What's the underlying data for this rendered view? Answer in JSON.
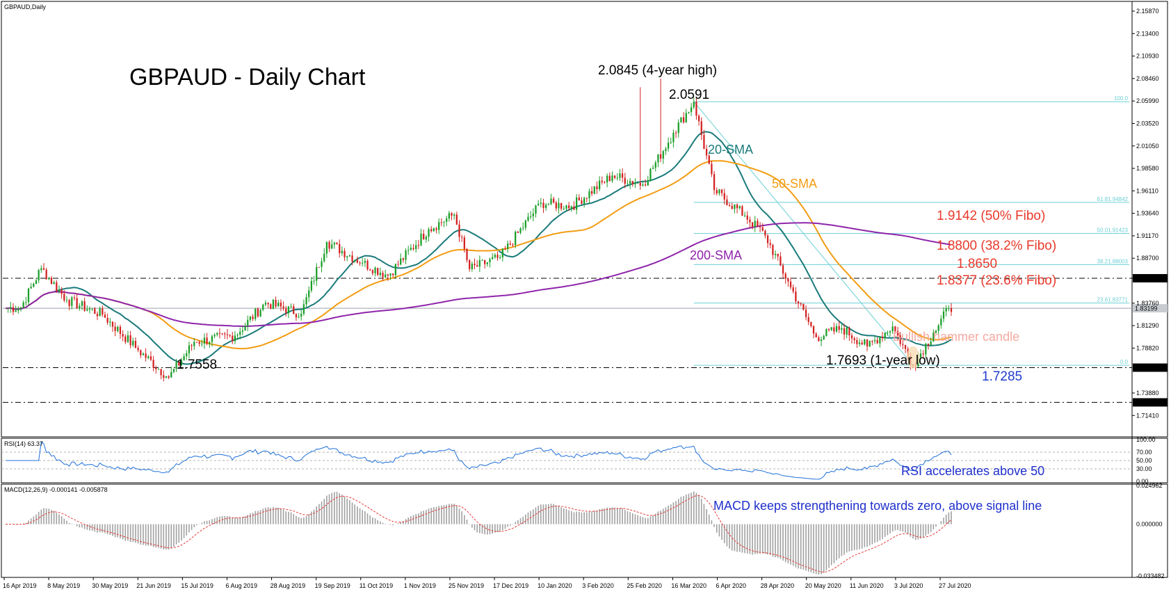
{
  "chart_data": [
    {
      "panel": "price",
      "type": "candlestick",
      "symbol_label": "GBPAUD,Daily",
      "title": "GBPAUD - Daily Chart",
      "ylim": [
        1.6967,
        2.1587
      ],
      "y_ticks": [
        "2.15870",
        "2.13400",
        "2.10930",
        "2.08460",
        "2.05990",
        "2.03520",
        "2.01050",
        "1.98580",
        "1.96110",
        "1.93640",
        "1.91170",
        "1.88700",
        "1.86500",
        "1.83760",
        "1.83199",
        "1.81290",
        "1.78820",
        "1.76670",
        "1.73880",
        "1.72850",
        "1.71410"
      ],
      "x_labels": [
        "16 Apr 2019",
        "8 May 2019",
        "30 May 2019",
        "21 Jun 2019",
        "15 Jul 2019",
        "6 Aug 2019",
        "28 Aug 2019",
        "19 Sep 2019",
        "11 Oct 2019",
        "1 Nov 2019",
        "25 Nov 2019",
        "17 Dec 2019",
        "10 Jan 2020",
        "3 Feb 2020",
        "25 Feb 2020",
        "16 Mar 2020",
        "6 Apr 2020",
        "28 Apr 2020",
        "20 May 2020",
        "11 Jun 2020",
        "3 Jul 2020",
        "27 Jul 2020"
      ],
      "key_points": [
        {
          "index": 0,
          "close": 1.832
        },
        {
          "index": 6,
          "close": 1.833
        },
        {
          "index": 14,
          "close": 1.876
        },
        {
          "index": 24,
          "close": 1.841
        },
        {
          "index": 38,
          "close": 1.825
        },
        {
          "index": 52,
          "close": 1.786
        },
        {
          "index": 64,
          "close": 1.7558
        },
        {
          "index": 74,
          "close": 1.795
        },
        {
          "index": 90,
          "close": 1.802
        },
        {
          "index": 102,
          "close": 1.838
        },
        {
          "index": 116,
          "close": 1.826
        },
        {
          "index": 126,
          "close": 1.905
        },
        {
          "index": 140,
          "close": 1.882
        },
        {
          "index": 150,
          "close": 1.868
        },
        {
          "index": 166,
          "close": 1.919
        },
        {
          "index": 176,
          "close": 1.935
        },
        {
          "index": 182,
          "close": 1.875
        },
        {
          "index": 194,
          "close": 1.888
        },
        {
          "index": 210,
          "close": 1.948
        },
        {
          "index": 222,
          "close": 1.944
        },
        {
          "index": 238,
          "close": 1.978
        },
        {
          "index": 250,
          "close": 1.968
        },
        {
          "index": 262,
          "close": 2.025
        },
        {
          "index": 270,
          "close": 2.0591
        },
        {
          "index": 278,
          "close": 1.962
        },
        {
          "index": 290,
          "close": 1.934
        },
        {
          "index": 298,
          "close": 1.912
        },
        {
          "index": 308,
          "close": 1.855
        },
        {
          "index": 318,
          "close": 1.8
        },
        {
          "index": 328,
          "close": 1.81
        },
        {
          "index": 338,
          "close": 1.79
        },
        {
          "index": 348,
          "close": 1.812
        },
        {
          "index": 356,
          "close": 1.7693
        },
        {
          "index": 364,
          "close": 1.805
        },
        {
          "index": 370,
          "close": 1.832
        }
      ],
      "spikes": [
        {
          "index": 249,
          "high": 2.075
        },
        {
          "index": 257,
          "high": 2.0845
        }
      ],
      "levels": [
        {
          "value": 1.865,
          "label": "1.8650",
          "style": "dash-dot"
        },
        {
          "value": 1.7667,
          "label": "1.76670",
          "style": "dash-dot"
        },
        {
          "value": 1.7285,
          "label": "1.72850",
          "style": "dash-dot"
        },
        {
          "value": 1.83199,
          "label": "1.83199",
          "style": "solid"
        }
      ],
      "fibonacci": [
        {
          "value": 2.0591,
          "label": "100.0"
        },
        {
          "value": 1.94842,
          "label": "61.81.94842"
        },
        {
          "value": 1.91423,
          "label": "50.01.91423"
        },
        {
          "value": 1.88003,
          "label": "38.21.88003"
        },
        {
          "value": 1.83771,
          "label": "23.61.83771"
        },
        {
          "value": 1.7693,
          "label": "0.0"
        }
      ],
      "moving_averages": [
        {
          "name": "20-SMA",
          "color": "#1a7a7a"
        },
        {
          "name": "50-SMA",
          "color": "#f39c12"
        },
        {
          "name": "200-SMA",
          "color": "#8e24aa"
        }
      ],
      "annotations": [
        {
          "text": "2.0845 (4-year high)",
          "color": "#000000"
        },
        {
          "text": "2.0591",
          "color": "#000000"
        },
        {
          "text": "1.7558",
          "color": "#000000"
        },
        {
          "text": "1.7693 (1-year low)",
          "color": "#000000"
        },
        {
          "text": "1.7285",
          "color": "#1f3ccc"
        },
        {
          "text": "1.9142 (50% Fibo)",
          "color": "#e8392b"
        },
        {
          "text": "1.8800 (38.2% Fibo)",
          "color": "#e8392b"
        },
        {
          "text": "1.8650",
          "color": "#e8392b"
        },
        {
          "text": "1.8377 (23.6% Fibo)",
          "color": "#e8392b"
        },
        {
          "text": "Bullish hammer candle",
          "color": "#f4a9a0"
        },
        {
          "text": "20-SMA",
          "color": "#1a7a7a"
        },
        {
          "text": "50-SMA",
          "color": "#f39c12"
        },
        {
          "text": "200-SMA",
          "color": "#8e24aa"
        }
      ]
    },
    {
      "panel": "rsi",
      "type": "line",
      "label": "RSI(14) 63.37",
      "y_ticks": [
        "100.00",
        "70.00",
        "50.00",
        "30.00",
        "0.00"
      ],
      "ylim": [
        0,
        100
      ],
      "levels": [
        70,
        50,
        30
      ],
      "color": "#1e6fd9",
      "annotation": {
        "text": "RSI accelerates above 50",
        "color": "#1f2fcc"
      }
    },
    {
      "panel": "macd",
      "type": "bar+line",
      "label": "MACD(12,26,9) -0.000141 -0.005878",
      "y_ticks": [
        "0.024962",
        "0.000000",
        "-0.033482"
      ],
      "ylim": [
        -0.033482,
        0.024962
      ],
      "histogram_color": "#a0a0a0",
      "signal_color": "#e53935",
      "annotation": {
        "text": "MACD keeps strengthening towards zero, above signal line",
        "color": "#1f2fcc"
      }
    }
  ]
}
